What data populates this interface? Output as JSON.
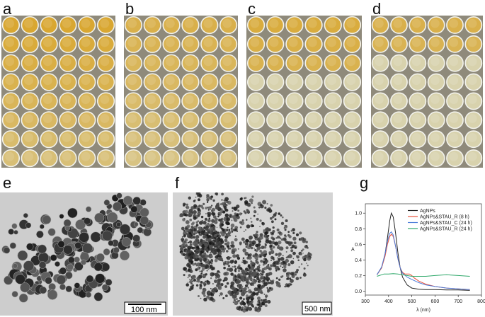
{
  "panel_labels": {
    "a": "a",
    "b": "b",
    "c": "c",
    "d": "d",
    "e": "e",
    "f": "f",
    "g": "g"
  },
  "plates": [
    {
      "id": "a",
      "yellow_rows": 8,
      "intensity": 0.95
    },
    {
      "id": "b",
      "yellow_rows": 8,
      "intensity": 0.75
    },
    {
      "id": "c",
      "yellow_rows": 3,
      "intensity": 0.85
    },
    {
      "id": "d",
      "yellow_rows": 2,
      "intensity": 0.75
    }
  ],
  "plate_grid": {
    "rows": 8,
    "cols": 6
  },
  "colors": {
    "well_yellow": "#d9a52a",
    "well_pale": "#d8d2ad",
    "plate_bg": "#8f8a7b",
    "tem_bg": "#cfcfcf",
    "series_agnps": "#222222",
    "series_stau_r8": "#e8513a",
    "series_stau_c24": "#4a7bd8",
    "series_stau_r24": "#2fa86a"
  },
  "tem_e": {
    "scale_label": "100 nm"
  },
  "tem_f": {
    "scale_label": "500 nm"
  },
  "chart_data": {
    "type": "line",
    "xlabel": "λ (nm)",
    "ylabel": "A",
    "xlim": [
      300,
      800
    ],
    "ylim": [
      -0.05,
      1.12
    ],
    "x_ticks": [
      300,
      400,
      500,
      600,
      700,
      800
    ],
    "y_ticks": [
      0.0,
      0.2,
      0.4,
      0.6,
      0.8,
      1.0
    ],
    "x_tick_labels": [
      "300",
      "400",
      "500",
      "600",
      "700",
      "800"
    ],
    "y_tick_labels": [
      "0.0",
      "0.2",
      "0.4",
      "0.6",
      "0.8",
      "1.0"
    ],
    "legend_position": "top-right",
    "series": [
      {
        "name": "AgNPs",
        "color": "#222222",
        "x": [
          350,
          370,
          385,
          395,
          405,
          412,
          420,
          430,
          440,
          450,
          460,
          480,
          500,
          530,
          560,
          600,
          650,
          700,
          750
        ],
        "y": [
          0.21,
          0.3,
          0.48,
          0.68,
          0.9,
          1.0,
          0.95,
          0.75,
          0.5,
          0.3,
          0.18,
          0.08,
          0.04,
          0.025,
          0.02,
          0.02,
          0.015,
          0.015,
          0.01
        ]
      },
      {
        "name": "AgNPs&STAU_R (8 h)",
        "color": "#e8513a",
        "x": [
          350,
          370,
          385,
          395,
          405,
          412,
          420,
          430,
          440,
          450,
          460,
          470,
          480,
          490,
          500,
          510,
          530,
          560,
          600,
          650,
          700,
          750
        ],
        "y": [
          0.21,
          0.3,
          0.45,
          0.6,
          0.7,
          0.73,
          0.7,
          0.58,
          0.42,
          0.3,
          0.24,
          0.22,
          0.22,
          0.22,
          0.2,
          0.17,
          0.13,
          0.09,
          0.06,
          0.04,
          0.03,
          0.02
        ]
      },
      {
        "name": "AgNPs&STAU_C (24 h)",
        "color": "#4a7bd8",
        "x": [
          350,
          370,
          385,
          395,
          405,
          412,
          420,
          430,
          440,
          450,
          460,
          480,
          500,
          530,
          560,
          600,
          650,
          700,
          750
        ],
        "y": [
          0.21,
          0.31,
          0.48,
          0.64,
          0.74,
          0.76,
          0.72,
          0.58,
          0.42,
          0.3,
          0.23,
          0.18,
          0.15,
          0.11,
          0.08,
          0.06,
          0.04,
          0.03,
          0.02
        ]
      },
      {
        "name": "AgNPs&STAU_R (24 h)",
        "color": "#2fa86a",
        "x": [
          350,
          360,
          370,
          380,
          390,
          400,
          420,
          440,
          460,
          480,
          500,
          520,
          540,
          560,
          600,
          650,
          700,
          750
        ],
        "y": [
          0.19,
          0.2,
          0.21,
          0.22,
          0.22,
          0.22,
          0.225,
          0.22,
          0.21,
          0.2,
          0.19,
          0.19,
          0.19,
          0.19,
          0.2,
          0.21,
          0.2,
          0.19
        ]
      }
    ]
  }
}
